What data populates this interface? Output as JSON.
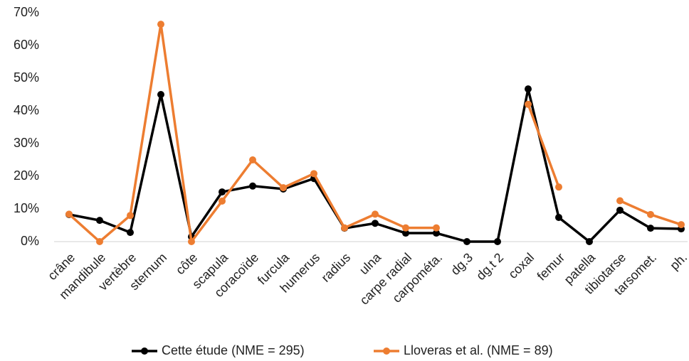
{
  "chart_data": {
    "type": "line",
    "categories": [
      "crâne",
      "mandibule",
      "vertèbre",
      "sternum",
      "côte",
      "scapula",
      "coracoïde",
      "furcula",
      "humerus",
      "radius",
      "ulna",
      "carpe radial",
      "carpométa.",
      "dg.3",
      "dg.t 2",
      "coxal",
      "femur",
      "patella",
      "tibiotarse",
      "tarsomet.",
      "ph."
    ],
    "series": [
      {
        "name": "Cette étude (NME = 295)",
        "color": "#000000",
        "values": [
          8.3,
          6.5,
          2.8,
          45,
          1.5,
          15.2,
          17,
          16.1,
          19.3,
          4.1,
          5.6,
          2.6,
          2.6,
          0,
          0,
          46.7,
          7.4,
          0,
          9.6,
          4.1,
          3.9
        ]
      },
      {
        "name": "Lloveras et al. (NME = 89)",
        "color": "#ed7d31",
        "values": [
          8.4,
          0,
          8,
          66.5,
          0,
          12.4,
          25,
          16.5,
          20.8,
          4.2,
          8.4,
          4.2,
          4.2,
          null,
          null,
          42,
          16.7,
          null,
          12.5,
          8.3,
          5.2
        ]
      }
    ],
    "ylim": [
      0,
      70
    ],
    "yticks": [
      {
        "value": 0,
        "label": "0%"
      },
      {
        "value": 10,
        "label": "10%"
      },
      {
        "value": 20,
        "label": "20%"
      },
      {
        "value": 30,
        "label": "30%"
      },
      {
        "value": 40,
        "label": "40%"
      },
      {
        "value": 50,
        "label": "50%"
      },
      {
        "value": 60,
        "label": "60%"
      },
      {
        "value": 70,
        "label": "70%"
      }
    ],
    "legend": "bottom"
  }
}
